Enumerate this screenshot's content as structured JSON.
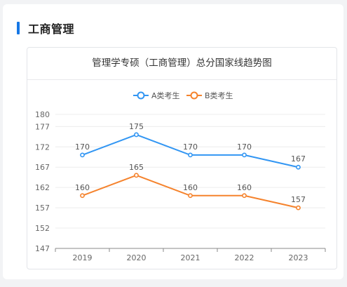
{
  "section": {
    "title": "工商管理"
  },
  "chart_data": {
    "type": "line",
    "title": "管理学专硕（工商管理）总分国家线趋势图",
    "categories": [
      "2019",
      "2020",
      "2021",
      "2022",
      "2023"
    ],
    "y_ticks": [
      147,
      152,
      157,
      162,
      167,
      172,
      177,
      180
    ],
    "ylim": [
      147,
      180
    ],
    "grid": true,
    "legend_position": "top-center",
    "series": [
      {
        "name": "A类考生",
        "color": "#3296f3",
        "values": [
          170,
          175,
          170,
          170,
          167
        ]
      },
      {
        "name": "B类考生",
        "color": "#f5832d",
        "values": [
          160,
          165,
          160,
          160,
          157
        ]
      }
    ]
  }
}
